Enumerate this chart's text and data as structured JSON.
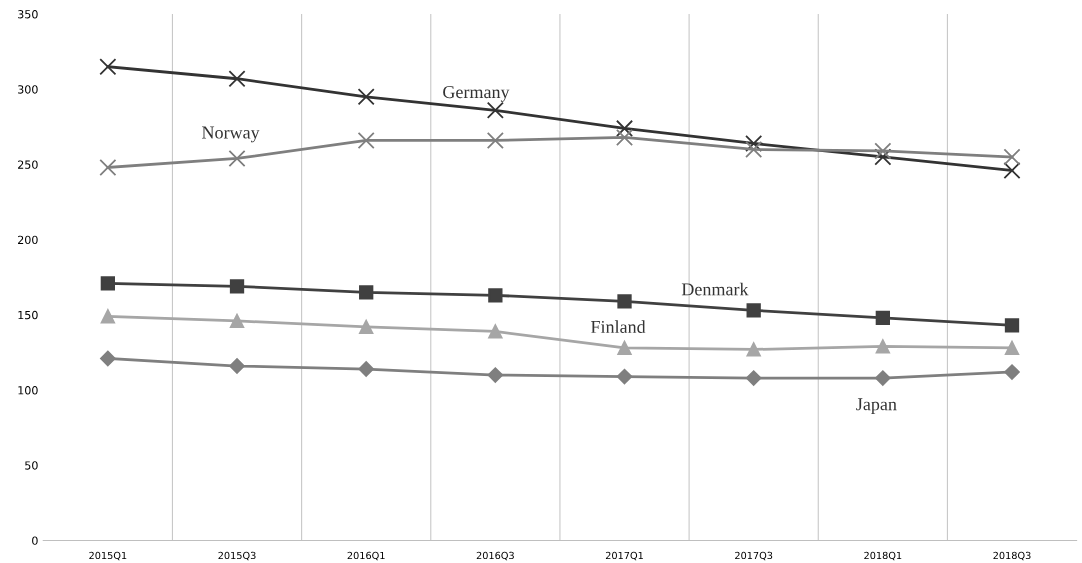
{
  "chart_data": {
    "type": "line",
    "categories": [
      "2015Q1",
      "2015Q3",
      "2016Q1",
      "2016Q3",
      "2017Q1",
      "2017Q3",
      "2018Q1",
      "2018Q3"
    ],
    "series": [
      {
        "name": "Germany",
        "color": "#333333",
        "marker": "cross",
        "values": [
          315,
          307,
          295,
          286,
          274,
          264,
          255,
          246
        ]
      },
      {
        "name": "Norway",
        "color": "#7f7f7f",
        "marker": "cross",
        "values": [
          248,
          254,
          266,
          266,
          268,
          260,
          259,
          255
        ]
      },
      {
        "name": "Denmark",
        "color": "#404040",
        "marker": "square",
        "values": [
          171,
          169,
          165,
          163,
          159,
          153,
          148,
          143
        ]
      },
      {
        "name": "Finland",
        "color": "#a6a6a6",
        "marker": "triangle",
        "values": [
          149,
          146,
          142,
          139,
          128,
          127,
          129,
          128
        ]
      },
      {
        "name": "Japan",
        "color": "#7f7f7f",
        "marker": "diamond",
        "values": [
          121,
          116,
          114,
          110,
          109,
          108,
          108,
          112
        ]
      }
    ],
    "ylim": [
      0,
      350
    ],
    "yticks": [
      0,
      50,
      100,
      150,
      200,
      250,
      300,
      350
    ],
    "grid": "x",
    "legend": false,
    "line_style": "solid"
  }
}
